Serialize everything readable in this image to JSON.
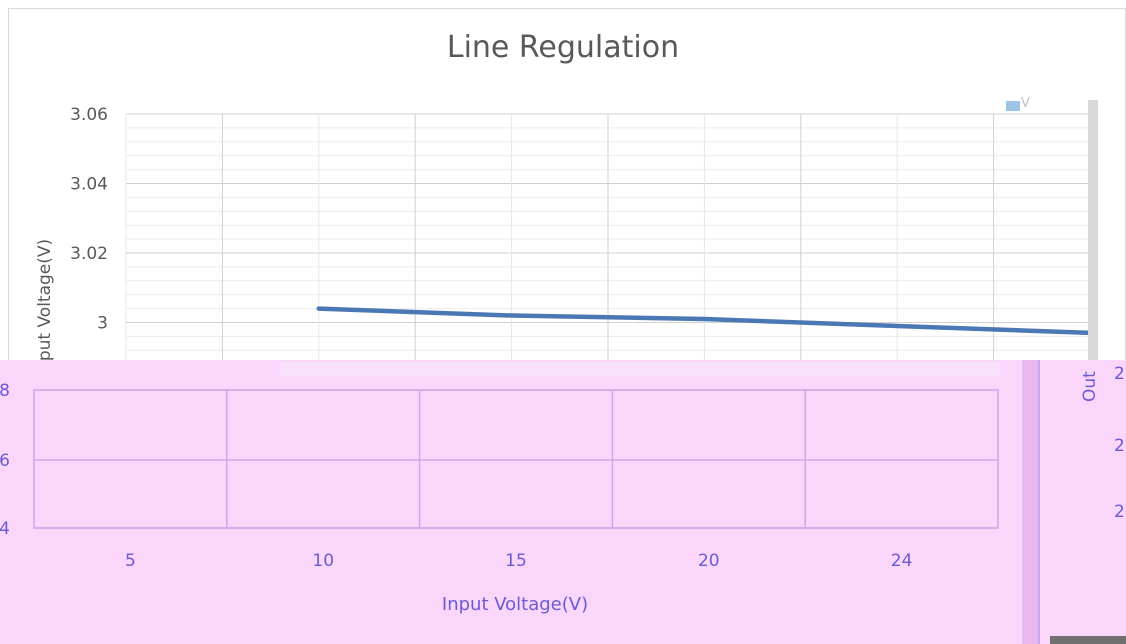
{
  "chart_data": {
    "type": "line",
    "title": "Line Regulation",
    "xlabel": "Input Voltage(V)",
    "ylabel": "put Voltage(V)",
    "ylim": [
      2.98,
      3.06
    ],
    "y_ticks": [
      "3",
      "3.02",
      "3.04",
      "3.06"
    ],
    "x_ticks": [
      "5",
      "10",
      "15",
      "20",
      "24"
    ],
    "grid": true,
    "legend_position": "top-right",
    "legend_label": "V",
    "series": [
      {
        "color": "#4a78b5",
        "x": [
          7.5,
          12.5,
          17.5,
          22.5,
          27.5
        ],
        "y": [
          3.004,
          3.002,
          3.001,
          2.999,
          2.997
        ]
      }
    ]
  },
  "overlay": {
    "y_ticks": [
      "8",
      "6",
      "4"
    ],
    "side_label": "Out",
    "side_ticks": [
      "2",
      "2",
      "2"
    ]
  },
  "colors": {
    "overlay_bg": "#fad6fa",
    "overlay_text": "#6a5ad6",
    "line": "#4a78b5"
  }
}
